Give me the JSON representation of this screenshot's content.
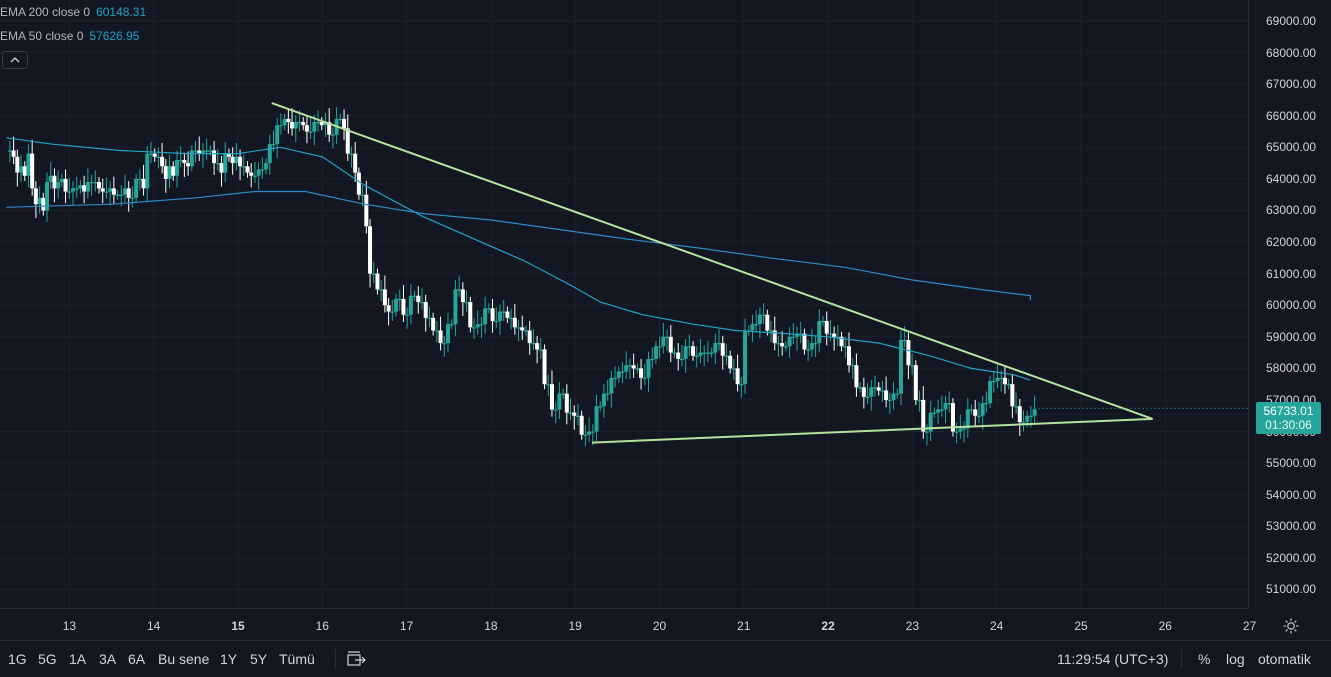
{
  "legend": {
    "ema200": {
      "label": "EMA 200 close 0",
      "value": "60148.31",
      "color": "#2962ff"
    },
    "ema50": {
      "label": "EMA 50 close 0",
      "value": "57626.95",
      "color": "#22a2c8"
    }
  },
  "collapse_icon": "chevron-up-icon",
  "price_axis": {
    "ticks": [
      "69000.00",
      "68000.00",
      "67000.00",
      "66000.00",
      "65000.00",
      "64000.00",
      "63000.00",
      "62000.00",
      "61000.00",
      "60000.00",
      "59000.00",
      "58000.00",
      "57000.00",
      "56000.00",
      "55000.00",
      "54000.00",
      "53000.00",
      "52000.00",
      "51000.00"
    ]
  },
  "time_axis": {
    "ticks": [
      {
        "label": "13",
        "bold": false
      },
      {
        "label": "14",
        "bold": false
      },
      {
        "label": "15",
        "bold": true
      },
      {
        "label": "16",
        "bold": false
      },
      {
        "label": "17",
        "bold": false
      },
      {
        "label": "18",
        "bold": false
      },
      {
        "label": "19",
        "bold": false
      },
      {
        "label": "20",
        "bold": false
      },
      {
        "label": "21",
        "bold": false
      },
      {
        "label": "22",
        "bold": true
      },
      {
        "label": "23",
        "bold": false
      },
      {
        "label": "24",
        "bold": false
      },
      {
        "label": "25",
        "bold": false
      },
      {
        "label": "26",
        "bold": false
      },
      {
        "label": "27",
        "bold": false
      }
    ]
  },
  "last_price": {
    "price": "56733.01",
    "countdown": "01:30:06",
    "color": "#26a69a"
  },
  "bottom_bar": {
    "ranges": [
      "1G",
      "5G",
      "1A",
      "3A",
      "6A",
      "Bu sene",
      "1Y",
      "5Y",
      "Tümü"
    ],
    "clock": "11:29:54 (UTC+3)",
    "options": [
      "%",
      "log",
      "otomatik"
    ]
  },
  "chart_data": {
    "type": "candlestick",
    "ylim": [
      50000,
      69500
    ],
    "xlim": [
      12.25,
      27.4
    ],
    "colors": {
      "up": "#26a69a",
      "down": "#ffffff",
      "ema50": "#22a2c8",
      "ema200": "#2962ff",
      "trendline": "#b5e39e"
    },
    "ohlc_stream": [
      64900,
      64900,
      64700,
      64200,
      64400,
      64100,
      64800,
      63700,
      63200,
      63400,
      63000,
      63900,
      64100,
      63700,
      63900,
      64000,
      63600,
      63600,
      63700,
      63700,
      63800,
      63600,
      63900,
      63900,
      63900,
      63700,
      63600,
      63600,
      63700,
      63500,
      63500,
      63500,
      63700,
      63400,
      63400,
      64000,
      64000,
      63700,
      64800,
      64800,
      64700,
      64700,
      64400,
      64000,
      64400,
      64100,
      64600,
      64600,
      64500,
      64400,
      64900,
      64900,
      64800,
      64900,
      64900,
      64900,
      64500,
      64500,
      64200,
      64800,
      64700,
      64500,
      64700,
      64400,
      64400,
      64200,
      64100,
      64100,
      64300,
      64300,
      64500,
      65100,
      65100,
      65700,
      65700,
      65900,
      65800,
      65600,
      65800,
      65800,
      65700,
      65500,
      65500,
      65800,
      65800,
      65700,
      65800,
      65400,
      65400,
      65900,
      65900,
      65600,
      64800,
      64800,
      64200,
      63500,
      63500,
      62500,
      61000,
      61000,
      60500,
      60500,
      60000,
      59800,
      59800,
      60200,
      60200,
      59700,
      59700,
      60300,
      60300,
      60100,
      60100,
      59600,
      59600,
      59200,
      59200,
      58800,
      58800,
      59400,
      59400,
      60500,
      60500,
      60100,
      60100,
      59300,
      59300,
      59400,
      59400,
      59900,
      59900,
      59500,
      59500,
      59800,
      59800,
      59600,
      59600,
      59300,
      59300,
      59200,
      59200,
      58800,
      58800,
      58600,
      58600,
      57500,
      57500,
      56700,
      56700,
      57200,
      57200,
      56600,
      56600,
      56500,
      56500,
      55900,
      55900,
      56000,
      56000,
      56800,
      56800,
      57200,
      57200,
      57700,
      57700,
      57900,
      57900,
      58100,
      58100,
      58000,
      58000,
      57700,
      57700,
      58300,
      58300,
      58700,
      58700,
      59000,
      59000,
      58500,
      58500,
      58300,
      58300,
      58700,
      58700,
      58400,
      58400,
      58500,
      58500,
      58500,
      58500,
      58800,
      58800,
      58400,
      58400,
      58000,
      58000,
      57500,
      57500,
      59200,
      59200,
      59400,
      59400,
      59700,
      59700,
      59200,
      59200,
      58800,
      58800,
      58700,
      58700,
      59000,
      59000,
      59100,
      59100,
      58600,
      58600,
      58800,
      58800,
      59500,
      59500,
      59100,
      59100,
      59000,
      59000,
      58700,
      58700,
      58100,
      58100,
      57400,
      57400,
      57100,
      57100,
      57400,
      57400,
      57300,
      57300,
      57000,
      57000,
      57200,
      57200,
      58900,
      58900,
      58100,
      58100,
      57000,
      57000,
      56000,
      56000,
      56600,
      56600,
      56700,
      56700,
      56900,
      56900,
      56000,
      56000,
      56100,
      56100,
      56700,
      56700,
      56500,
      56500,
      56900,
      56900,
      57600,
      57600,
      57700,
      57700,
      57500,
      57500,
      56800,
      56800,
      56300,
      56300,
      56500,
      56500,
      56700
    ],
    "ema200": [
      [
        12.25,
        63100
      ],
      [
        13.5,
        63200
      ],
      [
        14.5,
        63400
      ],
      [
        15.2,
        63600
      ],
      [
        15.8,
        63600
      ],
      [
        16.5,
        63200
      ],
      [
        17.2,
        62900
      ],
      [
        18.0,
        62700
      ],
      [
        18.8,
        62400
      ],
      [
        19.6,
        62100
      ],
      [
        20.5,
        61800
      ],
      [
        21.3,
        61500
      ],
      [
        22.2,
        61200
      ],
      [
        23.0,
        60800
      ],
      [
        23.8,
        60500
      ],
      [
        24.4,
        60300
      ],
      [
        24.4,
        60148
      ]
    ],
    "ema50": [
      [
        12.25,
        65300
      ],
      [
        12.8,
        65100
      ],
      [
        13.6,
        64900
      ],
      [
        14.4,
        64800
      ],
      [
        15.0,
        64800
      ],
      [
        15.5,
        65000
      ],
      [
        16.0,
        64700
      ],
      [
        16.5,
        63800
      ],
      [
        17.2,
        62800
      ],
      [
        17.8,
        62100
      ],
      [
        18.4,
        61400
      ],
      [
        18.9,
        60700
      ],
      [
        19.3,
        60100
      ],
      [
        19.8,
        59700
      ],
      [
        20.4,
        59400
      ],
      [
        20.9,
        59200
      ],
      [
        21.5,
        59100
      ],
      [
        22.0,
        59000
      ],
      [
        22.6,
        58800
      ],
      [
        23.2,
        58400
      ],
      [
        23.7,
        58000
      ],
      [
        24.2,
        57800
      ],
      [
        24.4,
        57627
      ]
    ],
    "trendlines": [
      {
        "points": [
          [
            15.4,
            66400
          ],
          [
            25.85,
            56400
          ]
        ]
      },
      {
        "points": [
          [
            19.2,
            55650
          ],
          [
            25.85,
            56400
          ]
        ]
      }
    ]
  }
}
